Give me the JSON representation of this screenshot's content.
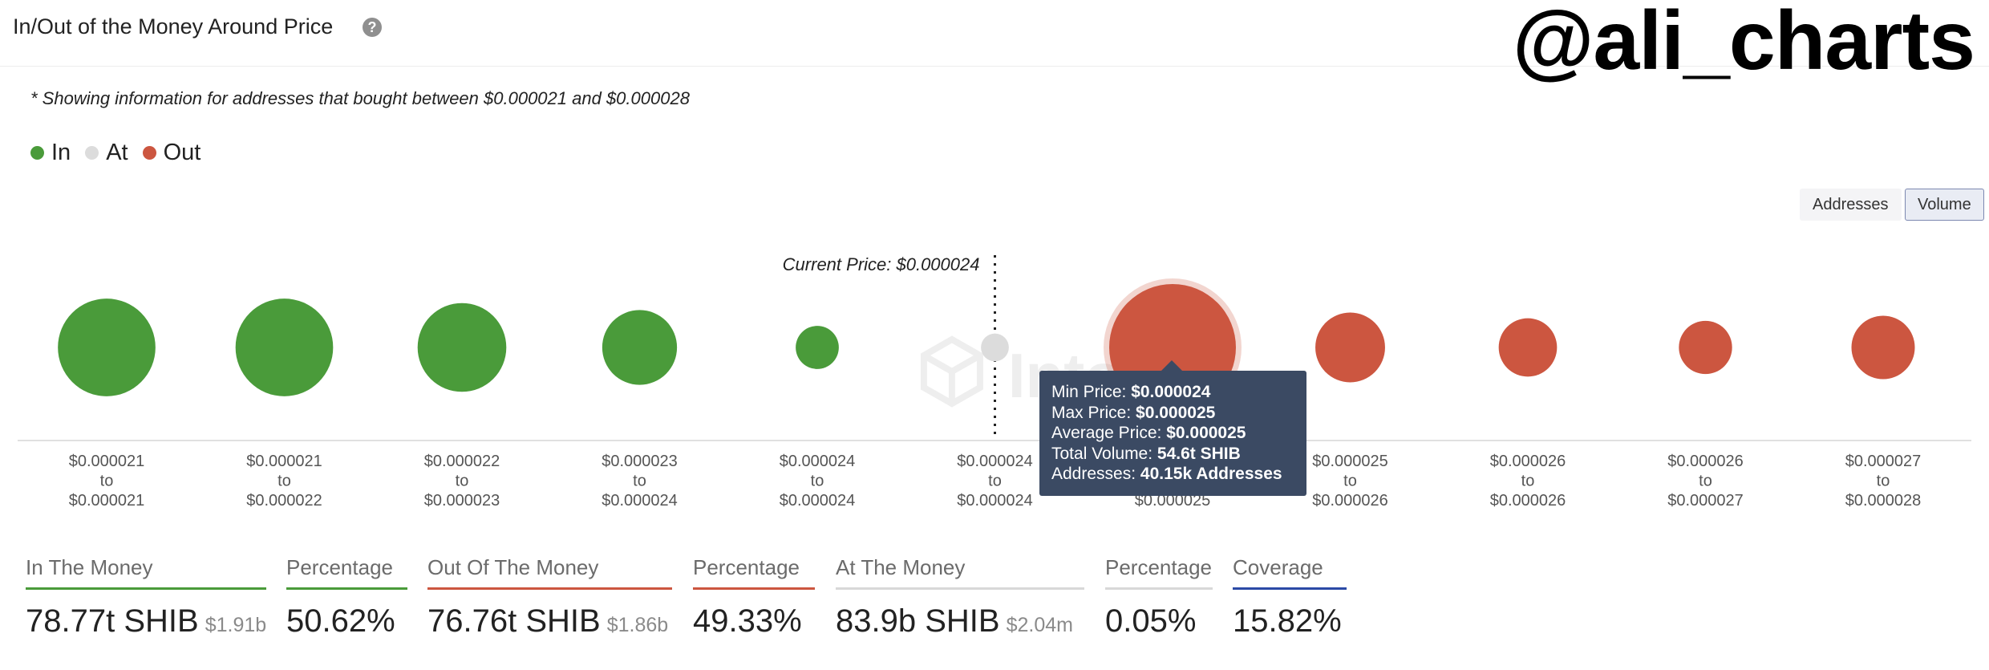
{
  "header": {
    "title": "In/Out of the Money Around Price",
    "help_icon": "question-circle-icon",
    "watermark": "@ali_charts"
  },
  "note": "* Showing information for addresses that bought between $0.000021 and $0.000028",
  "legend": [
    {
      "label": "In",
      "color": "#4a9b3a"
    },
    {
      "label": "At",
      "color": "#dcdcdc"
    },
    {
      "label": "Out",
      "color": "#cc5640"
    }
  ],
  "toggles": {
    "addresses": "Addresses",
    "volume": "Volume",
    "active": "volume"
  },
  "current_price_label": "Current Price: $0.000024",
  "chart_data": {
    "type": "scatter",
    "encoding": "bubble size = volume; color = in/at/out of the money",
    "categories": [
      {
        "from": "$0.000021",
        "to": "$0.000021",
        "status": "in",
        "size": 0.77
      },
      {
        "from": "$0.000021",
        "to": "$0.000022",
        "status": "in",
        "size": 0.77
      },
      {
        "from": "$0.000022",
        "to": "$0.000023",
        "status": "in",
        "size": 0.7
      },
      {
        "from": "$0.000023",
        "to": "$0.000024",
        "status": "in",
        "size": 0.59
      },
      {
        "from": "$0.000024",
        "to": "$0.000024",
        "status": "in",
        "size": 0.34
      },
      {
        "from": "$0.000024",
        "to": "$0.000024",
        "status": "at",
        "size": 0.22
      },
      {
        "from": "$0.000024",
        "to": "$0.000025",
        "status": "out",
        "size": 1.0
      },
      {
        "from": "$0.000025",
        "to": "$0.000026",
        "status": "out",
        "size": 0.55
      },
      {
        "from": "$0.000026",
        "to": "$0.000026",
        "status": "out",
        "size": 0.46
      },
      {
        "from": "$0.000026",
        "to": "$0.000027",
        "status": "out",
        "size": 0.42
      },
      {
        "from": "$0.000027",
        "to": "$0.000028",
        "status": "out",
        "size": 0.5
      }
    ],
    "connector": "to",
    "current_price_index": 5,
    "highlight_index": 6,
    "chart_watermark": "IntoThe"
  },
  "tooltip": {
    "rows": [
      {
        "label": "Min Price:",
        "value": "$0.000024"
      },
      {
        "label": "Max Price:",
        "value": "$0.000025"
      },
      {
        "label": "Average Price:",
        "value": "$0.000025"
      },
      {
        "label": "Total Volume:",
        "value": "54.6t SHIB"
      },
      {
        "label": "Addresses:",
        "value": "40.15k Addresses"
      }
    ]
  },
  "stats": [
    {
      "label": "In The Money",
      "value": "78.77t SHIB",
      "sub": "$1.91b",
      "color": "#4a9b3a"
    },
    {
      "label": "Percentage",
      "value": "50.62%",
      "sub": "",
      "color": "#4a9b3a"
    },
    {
      "label": "Out Of The Money",
      "value": "76.76t SHIB",
      "sub": "$1.86b",
      "color": "#cc5640"
    },
    {
      "label": "Percentage",
      "value": "49.33%",
      "sub": "",
      "color": "#cc5640"
    },
    {
      "label": "At The Money",
      "value": "83.9b SHIB",
      "sub": "$2.04m",
      "color": "#d8d8d8"
    },
    {
      "label": "Percentage",
      "value": "0.05%",
      "sub": "",
      "color": "#d8d8d8"
    },
    {
      "label": "Coverage",
      "value": "15.82%",
      "sub": "",
      "color": "#2b4aa6"
    }
  ]
}
